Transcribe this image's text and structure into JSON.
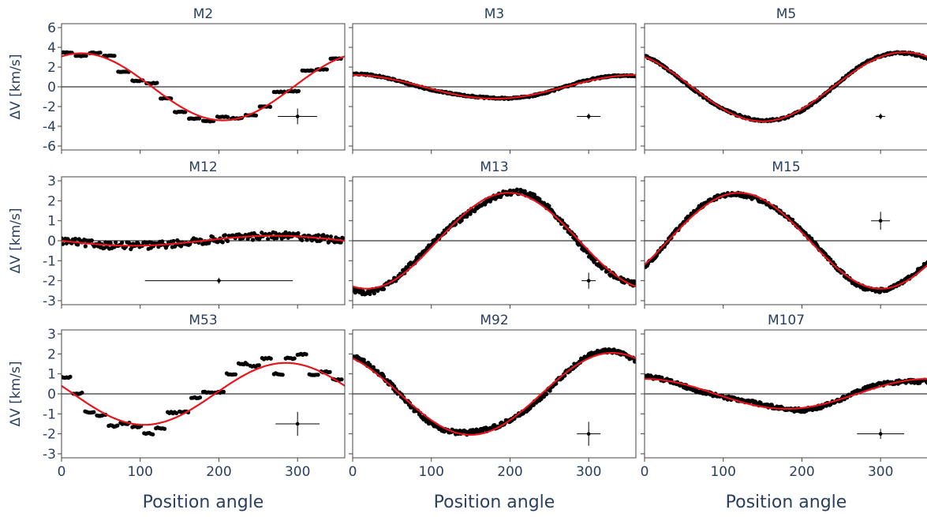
{
  "chart_data": [
    {
      "type": "scatter",
      "title": "M2",
      "ylabel": "ΔV [km/s]",
      "xlabel": "",
      "xlim": [
        0,
        360
      ],
      "ylim": [
        -6.4,
        6.4
      ],
      "yticks": [
        -6,
        -4,
        -2,
        0,
        2,
        4,
        6
      ],
      "xticks": [
        0,
        100,
        200,
        300
      ],
      "fit": {
        "amplitude": 3.4,
        "phase_deg": 25,
        "offset": 0
      },
      "scatter_style": "steps",
      "steps": 20,
      "noise": 0.55,
      "errorbar": {
        "x": 300,
        "y": -3,
        "xerr": 25,
        "yerr": 0.8
      },
      "colors": {
        "points": "#000000",
        "fit": "#e8141c"
      }
    },
    {
      "type": "scatter",
      "title": "M3",
      "ylabel": "",
      "xlabel": "",
      "xlim": [
        0,
        360
      ],
      "ylim": [
        -6.4,
        6.4
      ],
      "yticks": [],
      "xticks": [
        0,
        100,
        200,
        300
      ],
      "fit": {
        "amplitude": 1.2,
        "phase_deg": 0,
        "offset": 0
      },
      "scatter_style": "dense",
      "noise": 0.15,
      "errorbar": {
        "x": 300,
        "y": -3,
        "xerr": 15,
        "yerr": 0.3
      },
      "colors": {
        "points": "#000000",
        "fit": "#e8141c"
      }
    },
    {
      "type": "scatter",
      "title": "M5",
      "ylabel": "",
      "xlabel": "",
      "xlim": [
        0,
        360
      ],
      "ylim": [
        -6.4,
        6.4
      ],
      "yticks": [],
      "xticks": [
        0,
        100,
        200,
        300
      ],
      "fit": {
        "amplitude": 3.5,
        "phase_deg": 330,
        "offset": 0
      },
      "scatter_style": "dense",
      "noise": 0.2,
      "errorbar": {
        "x": 300,
        "y": -3,
        "xerr": 6,
        "yerr": 0.3
      },
      "colors": {
        "points": "#000000",
        "fit": "#e8141c"
      }
    },
    {
      "type": "scatter",
      "title": "M12",
      "ylabel": "ΔV [km/s]",
      "xlabel": "",
      "xlim": [
        0,
        360
      ],
      "ylim": [
        -3.2,
        3.2
      ],
      "yticks": [
        -3,
        -2,
        -1,
        0,
        1,
        2,
        3
      ],
      "xticks": [
        0,
        100,
        200,
        300
      ],
      "fit": {
        "amplitude": 0.25,
        "phase_deg": 270,
        "offset": 0
      },
      "scatter_style": "sparse",
      "noise": 0.18,
      "errorbar": {
        "x": 200,
        "y": -2,
        "xerr": 94,
        "yerr": 0.15
      },
      "colors": {
        "points": "#000000",
        "fit": "#e8141c"
      }
    },
    {
      "type": "scatter",
      "title": "M13",
      "ylabel": "",
      "xlabel": "",
      "xlim": [
        0,
        360
      ],
      "ylim": [
        -3.2,
        3.2
      ],
      "yticks": [],
      "xticks": [
        0,
        100,
        200,
        300
      ],
      "fit": {
        "amplitude": 2.4,
        "phase_deg": 198,
        "offset": 0
      },
      "scatter_style": "dense",
      "noise": 0.25,
      "errorbar": {
        "x": 300,
        "y": -2,
        "xerr": 9,
        "yerr": 0.4
      },
      "colors": {
        "points": "#000000",
        "fit": "#e8141c"
      }
    },
    {
      "type": "scatter",
      "title": "M15",
      "ylabel": "",
      "xlabel": "",
      "xlim": [
        0,
        360
      ],
      "ylim": [
        -3.2,
        3.2
      ],
      "yticks": [],
      "xticks": [
        0,
        100,
        200,
        300
      ],
      "fit": {
        "amplitude": 2.4,
        "phase_deg": 120,
        "offset": 0
      },
      "scatter_style": "dense",
      "noise": 0.18,
      "errorbar": {
        "x": 300,
        "y": 1,
        "xerr": 12,
        "yerr": 0.45
      },
      "colors": {
        "points": "#000000",
        "fit": "#e8141c"
      }
    },
    {
      "type": "scatter",
      "title": "M53",
      "ylabel": "ΔV [km/s]",
      "xlabel": "Position angle",
      "xlim": [
        0,
        360
      ],
      "ylim": [
        -3.2,
        3.2
      ],
      "yticks": [
        -3,
        -2,
        -1,
        0,
        1,
        2,
        3
      ],
      "xticks": [
        0,
        100,
        200,
        300
      ],
      "fit": {
        "amplitude": 1.55,
        "phase_deg": 285,
        "offset": 0
      },
      "scatter_style": "steps",
      "steps": 24,
      "noise": 0.6,
      "errorbar": {
        "x": 300,
        "y": -1.5,
        "xerr": 28,
        "yerr": 0.6
      },
      "colors": {
        "points": "#000000",
        "fit": "#e8141c"
      }
    },
    {
      "type": "scatter",
      "title": "M92",
      "ylabel": "",
      "xlabel": "Position angle",
      "xlim": [
        0,
        360
      ],
      "ylim": [
        -3.2,
        3.2
      ],
      "yticks": [],
      "xticks": [
        0,
        100,
        200,
        300
      ],
      "fit": {
        "amplitude": 2.05,
        "phase_deg": 330,
        "offset": 0
      },
      "scatter_style": "dense",
      "noise": 0.22,
      "errorbar": {
        "x": 300,
        "y": -2,
        "xerr": 15,
        "yerr": 0.6
      },
      "colors": {
        "points": "#000000",
        "fit": "#e8141c"
      }
    },
    {
      "type": "scatter",
      "title": "M107",
      "ylabel": "",
      "xlabel": "Position angle",
      "xlim": [
        0,
        360
      ],
      "ylim": [
        -3.2,
        3.2
      ],
      "yticks": [],
      "xticks": [
        0,
        100,
        200,
        300
      ],
      "fit": {
        "amplitude": 0.75,
        "phase_deg": 0,
        "offset": 0
      },
      "scatter_style": "dense",
      "noise": 0.18,
      "errorbar": {
        "x": 300,
        "y": -2,
        "xerr": 30,
        "yerr": 0.25
      },
      "colors": {
        "points": "#000000",
        "fit": "#e8141c"
      }
    }
  ]
}
